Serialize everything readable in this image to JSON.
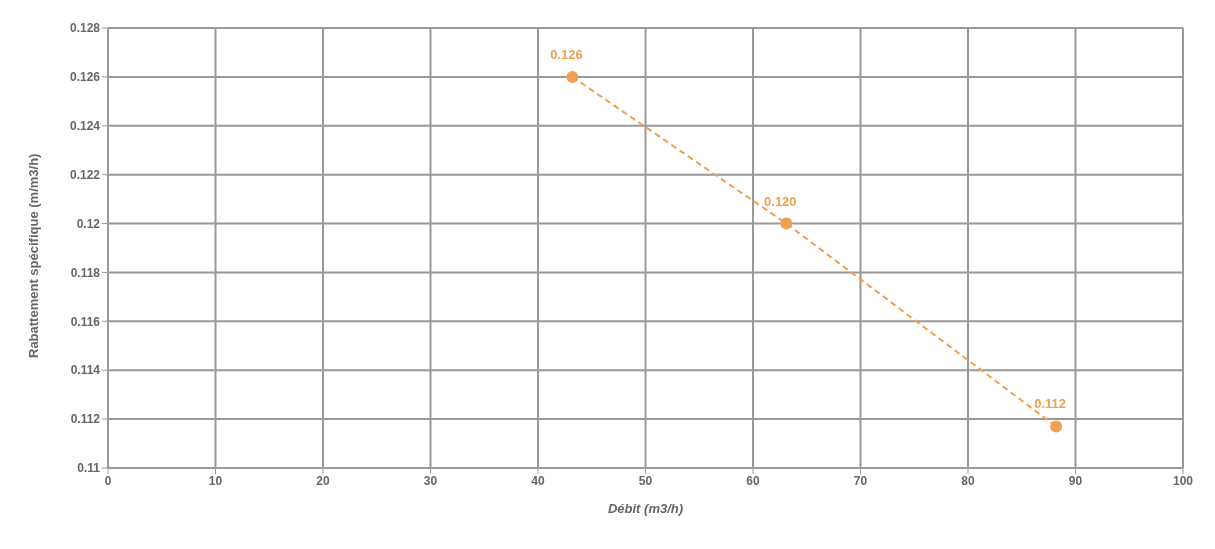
{
  "chart_data": {
    "type": "line",
    "xlabel": "Débit (m3/h)",
    "ylabel": "Rabattement spécifique (m/m3/h)",
    "x": [
      43.2,
      63.1,
      88.2
    ],
    "series": [
      {
        "color": "#f0a050",
        "values": [
          0.126,
          0.12,
          0.1117
        ],
        "value_labels": [
          "0.126",
          "0.120",
          "0.112"
        ]
      }
    ],
    "xlim": [
      0,
      100
    ],
    "xticks": [
      0,
      10,
      20,
      30,
      40,
      50,
      60,
      70,
      80,
      90,
      100
    ],
    "ylim": [
      0.11,
      0.128
    ],
    "yticks": [
      0.11,
      0.112,
      0.114,
      0.116,
      0.118,
      0.12,
      0.122,
      0.124,
      0.126,
      0.128
    ],
    "grid": true,
    "marker": "circle",
    "line_style": "dashed",
    "legend": false
  }
}
